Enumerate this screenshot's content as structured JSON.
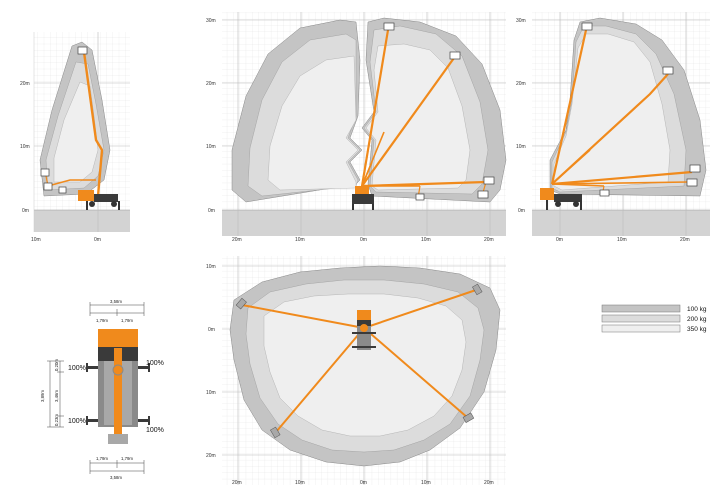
{
  "colors": {
    "boom": "#f08a1c",
    "zone_100": "#c4c4c4",
    "zone_200": "#dcdcdc",
    "zone_350": "#efefef",
    "ground": "#d3d3d3",
    "grid": "#dadada",
    "machine_dark": "#3a3a3a",
    "machine_grey": "#8a8a8a"
  },
  "side_views": {
    "view1": {
      "y_ticks": [
        "20m",
        "10m",
        "0m"
      ],
      "x_ticks": [
        "10m",
        "0m"
      ]
    },
    "view2": {
      "y_ticks": [
        "30m",
        "20m",
        "10m",
        "0m"
      ],
      "x_ticks": [
        "20m",
        "10m",
        "0m",
        "10m",
        "20m"
      ]
    },
    "view3": {
      "y_ticks": [
        "30m",
        "20m",
        "10m",
        "0m"
      ],
      "x_ticks": [
        "0m",
        "10m",
        "20m"
      ]
    }
  },
  "top_view": {
    "y_ticks": [
      "10m",
      "0m",
      "10m",
      "20m"
    ],
    "x_ticks": [
      "20m",
      "10m",
      "0m",
      "10m",
      "20m"
    ]
  },
  "footprint": {
    "width_total_top": "3,58m",
    "half_left_top": "1,79m",
    "half_right_top": "1,79m",
    "width_total_bottom": "3,58m",
    "half_left_bottom": "1,79m",
    "half_right_bottom": "1,79m",
    "length_total": "3,89m",
    "length_mid": "3,46m",
    "length_top": "0,20m",
    "length_bottom": "0,23m",
    "outrigger_labels": [
      "100%",
      "100%",
      "100%",
      "100%"
    ]
  },
  "legend": [
    {
      "label": "100 kg",
      "color": "#c4c4c4"
    },
    {
      "label": "200 kg",
      "color": "#dcdcdc"
    },
    {
      "label": "350 kg",
      "color": "#efefef"
    }
  ]
}
